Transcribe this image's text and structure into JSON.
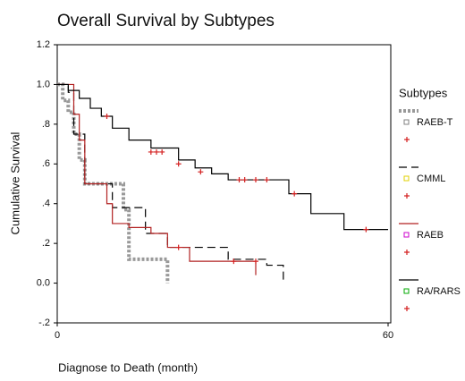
{
  "chart_data": {
    "type": "line",
    "step": true,
    "title": "Overall Survival by Subtypes",
    "x_label": "Diagnose to Death (month)",
    "y_label": "Cumulative Survival",
    "legend_title": "Subtypes",
    "xlim": [
      0,
      60
    ],
    "xticks": [
      0,
      60
    ],
    "ylim": [
      -0.2,
      1.2
    ],
    "yticks": [
      1.2,
      {
        "value": 1.0,
        "label": "1.0"
      },
      {
        "value": 0.8,
        "label": ".8"
      },
      {
        "value": 0.6,
        "label": ".6"
      },
      {
        "value": 0.4,
        "label": ".4"
      },
      {
        "value": 0.2,
        "label": ".2"
      },
      {
        "value": 0,
        "label": "0.0"
      },
      {
        "value": -0.2,
        "label": "-.2"
      }
    ],
    "series": [
      {
        "name": "RAEB-T",
        "color": "#999999",
        "style": "dotted",
        "marker_color": "#808080",
        "x": [
          0,
          1,
          2,
          3,
          4,
          5,
          12,
          13,
          19,
          20
        ],
        "values": [
          1.0,
          0.92,
          0.86,
          0.75,
          0.62,
          0.5,
          0.37,
          0.12,
          0.12,
          0.0
        ],
        "censor_x": [],
        "censor_values": []
      },
      {
        "name": "CMML",
        "color": "#000000",
        "style": "dashed",
        "marker_color": "#e0d000",
        "x": [
          0,
          2,
          3,
          5,
          10,
          16,
          20,
          31,
          38,
          41
        ],
        "values": [
          1.0,
          0.96,
          0.75,
          0.5,
          0.38,
          0.25,
          0.18,
          0.12,
          0.09,
          0.0
        ],
        "censor_x": [],
        "censor_values": []
      },
      {
        "name": "RAEB",
        "color": "#b22222",
        "style": "solid",
        "marker_color": "#cc00cc",
        "x": [
          0,
          3,
          4,
          5,
          9,
          10,
          13,
          17,
          20,
          24,
          36
        ],
        "values": [
          1.0,
          0.85,
          0.72,
          0.5,
          0.4,
          0.3,
          0.28,
          0.25,
          0.18,
          0.11,
          0.04
        ],
        "censor_x": [
          22,
          32,
          36
        ],
        "censor_values": [
          0.18,
          0.11,
          0.11
        ]
      },
      {
        "name": "RA/RARS",
        "color": "#000000",
        "style": "solid",
        "marker_color": "#00aa00",
        "x": [
          0,
          2,
          4,
          6,
          8,
          10,
          13,
          17,
          22,
          25,
          28,
          31,
          42,
          46,
          52,
          60
        ],
        "values": [
          1.0,
          0.97,
          0.93,
          0.88,
          0.84,
          0.78,
          0.72,
          0.68,
          0.62,
          0.58,
          0.55,
          0.52,
          0.45,
          0.35,
          0.27,
          0.27
        ],
        "censor_x": [
          9,
          17,
          18,
          19,
          22,
          26,
          33,
          34,
          36,
          38,
          43,
          56
        ],
        "censor_values": [
          0.84,
          0.66,
          0.66,
          0.66,
          0.6,
          0.56,
          0.52,
          0.52,
          0.52,
          0.52,
          0.45,
          0.27
        ]
      }
    ]
  }
}
